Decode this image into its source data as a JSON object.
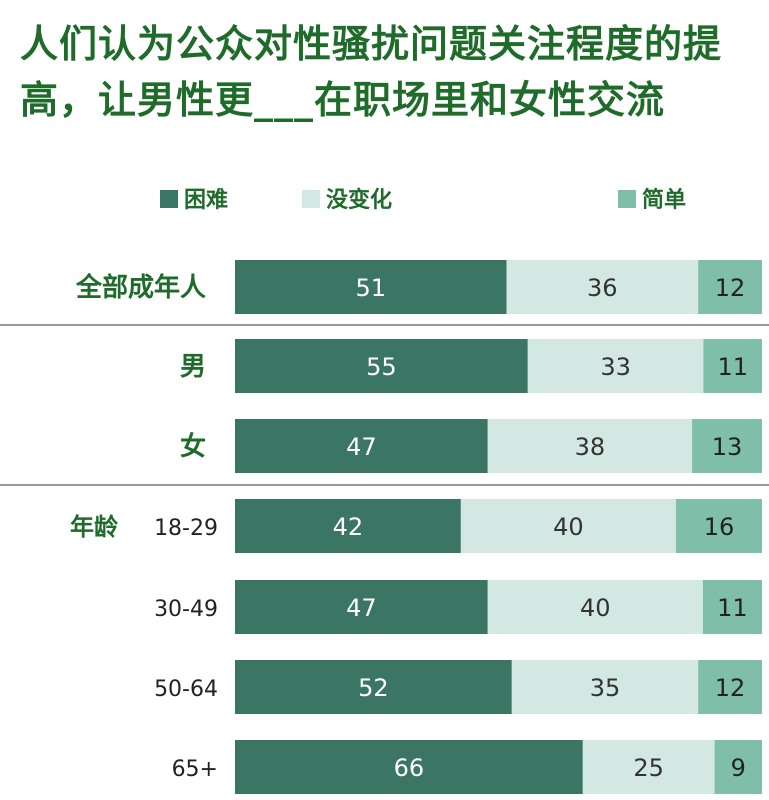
{
  "title": "人们认为公众对性骚扰问题关注程度的提高，让男性更___在职场里和女性交流",
  "colors": {
    "difficult": "#3b7563",
    "no_change": "#d3e8e2",
    "easy": "#7fbfa9",
    "title": "#1e6b2a",
    "label": "#1e6b2a"
  },
  "chart_data": {
    "type": "bar",
    "stacked": true,
    "orientation": "horizontal",
    "title": "人们认为公众对性骚扰问题关注程度的提高，让男性更___在职场里和女性交流",
    "legend": [
      "困难",
      "没变化",
      "简单"
    ],
    "legend_position": "top",
    "xlim": [
      0,
      100
    ],
    "grid": false,
    "group_label": "年龄",
    "categories": [
      "全部成年人",
      "男",
      "女",
      "18-29",
      "30-49",
      "50-64",
      "65+"
    ],
    "series": [
      {
        "name": "困难",
        "values": [
          51,
          55,
          47,
          42,
          47,
          52,
          66
        ]
      },
      {
        "name": "没变化",
        "values": [
          36,
          33,
          38,
          40,
          40,
          35,
          25
        ]
      },
      {
        "name": "简单",
        "values": [
          12,
          11,
          13,
          16,
          11,
          12,
          9
        ]
      }
    ]
  }
}
